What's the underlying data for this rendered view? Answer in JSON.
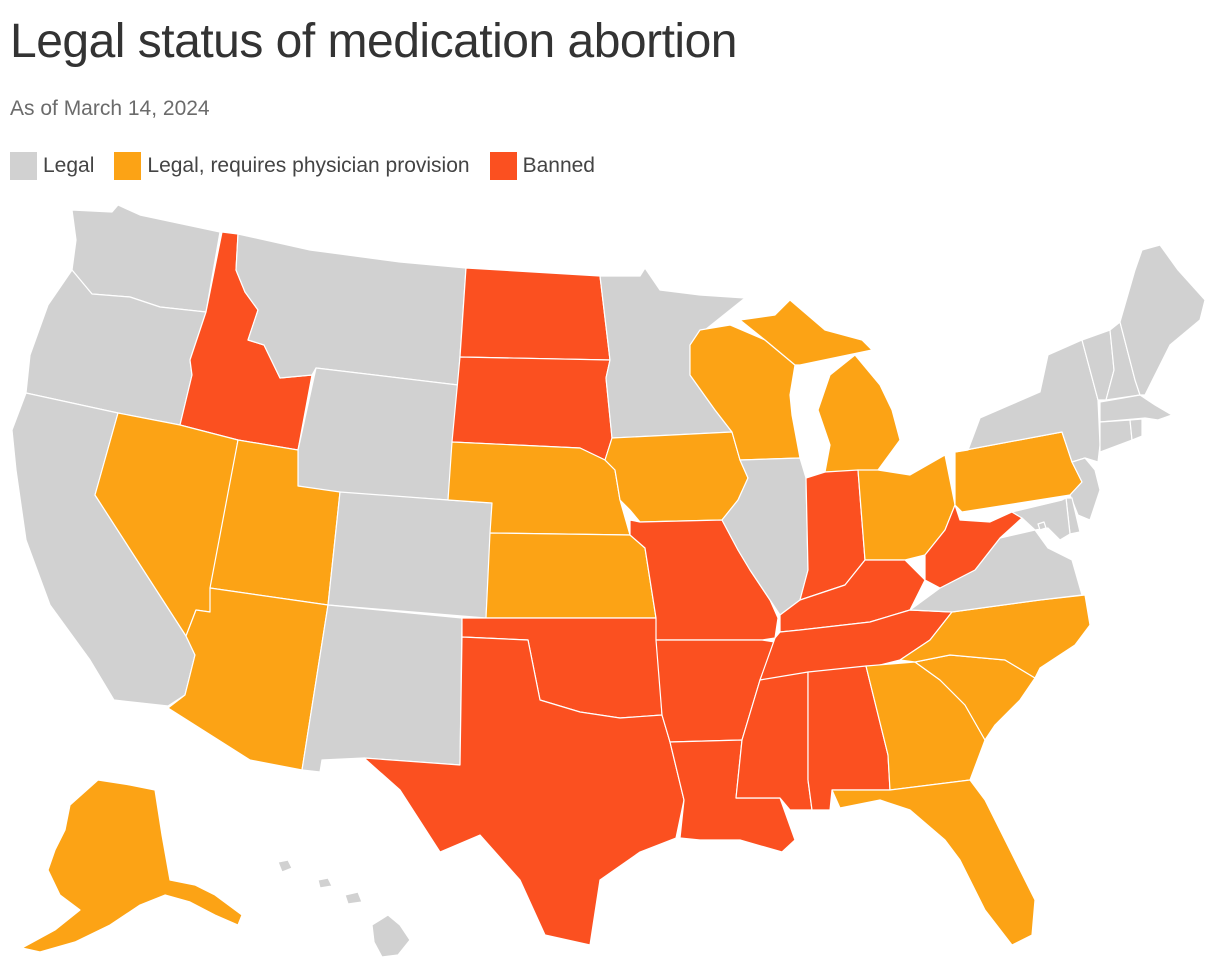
{
  "title": "Legal status of medication abortion",
  "subtitle": "As of March 14, 2024",
  "colors": {
    "legal": "#d1d1d1",
    "physician": "#fca315",
    "banned": "#fb5020"
  },
  "legend": [
    {
      "key": "legal",
      "label": "Legal"
    },
    {
      "key": "physician",
      "label": "Legal, requires physician provision"
    },
    {
      "key": "banned",
      "label": "Banned"
    }
  ],
  "states": {
    "WA": "legal",
    "OR": "legal",
    "CA": "legal",
    "ID": "banned",
    "NV": "physician",
    "UT": "physician",
    "AZ": "physician",
    "MT": "legal",
    "WY": "legal",
    "CO": "legal",
    "NM": "legal",
    "ND": "banned",
    "SD": "banned",
    "NE": "physician",
    "KS": "physician",
    "OK": "banned",
    "TX": "banned",
    "MN": "legal",
    "IA": "physician",
    "MO": "banned",
    "AR": "banned",
    "LA": "banned",
    "WI": "physician",
    "IL": "legal",
    "MI": "physician",
    "IN": "banned",
    "OH": "physician",
    "KY": "banned",
    "TN": "banned",
    "MS": "banned",
    "AL": "banned",
    "GA": "physician",
    "FL": "physician",
    "SC": "physician",
    "NC": "physician",
    "VA": "legal",
    "WV": "banned",
    "PA": "physician",
    "NY": "legal",
    "VT": "legal",
    "NH": "legal",
    "ME": "legal",
    "MA": "legal",
    "CT": "legal",
    "RI": "legal",
    "NJ": "legal",
    "DE": "legal",
    "MD": "legal",
    "DC": "legal",
    "AK": "physician",
    "HI": "legal"
  }
}
